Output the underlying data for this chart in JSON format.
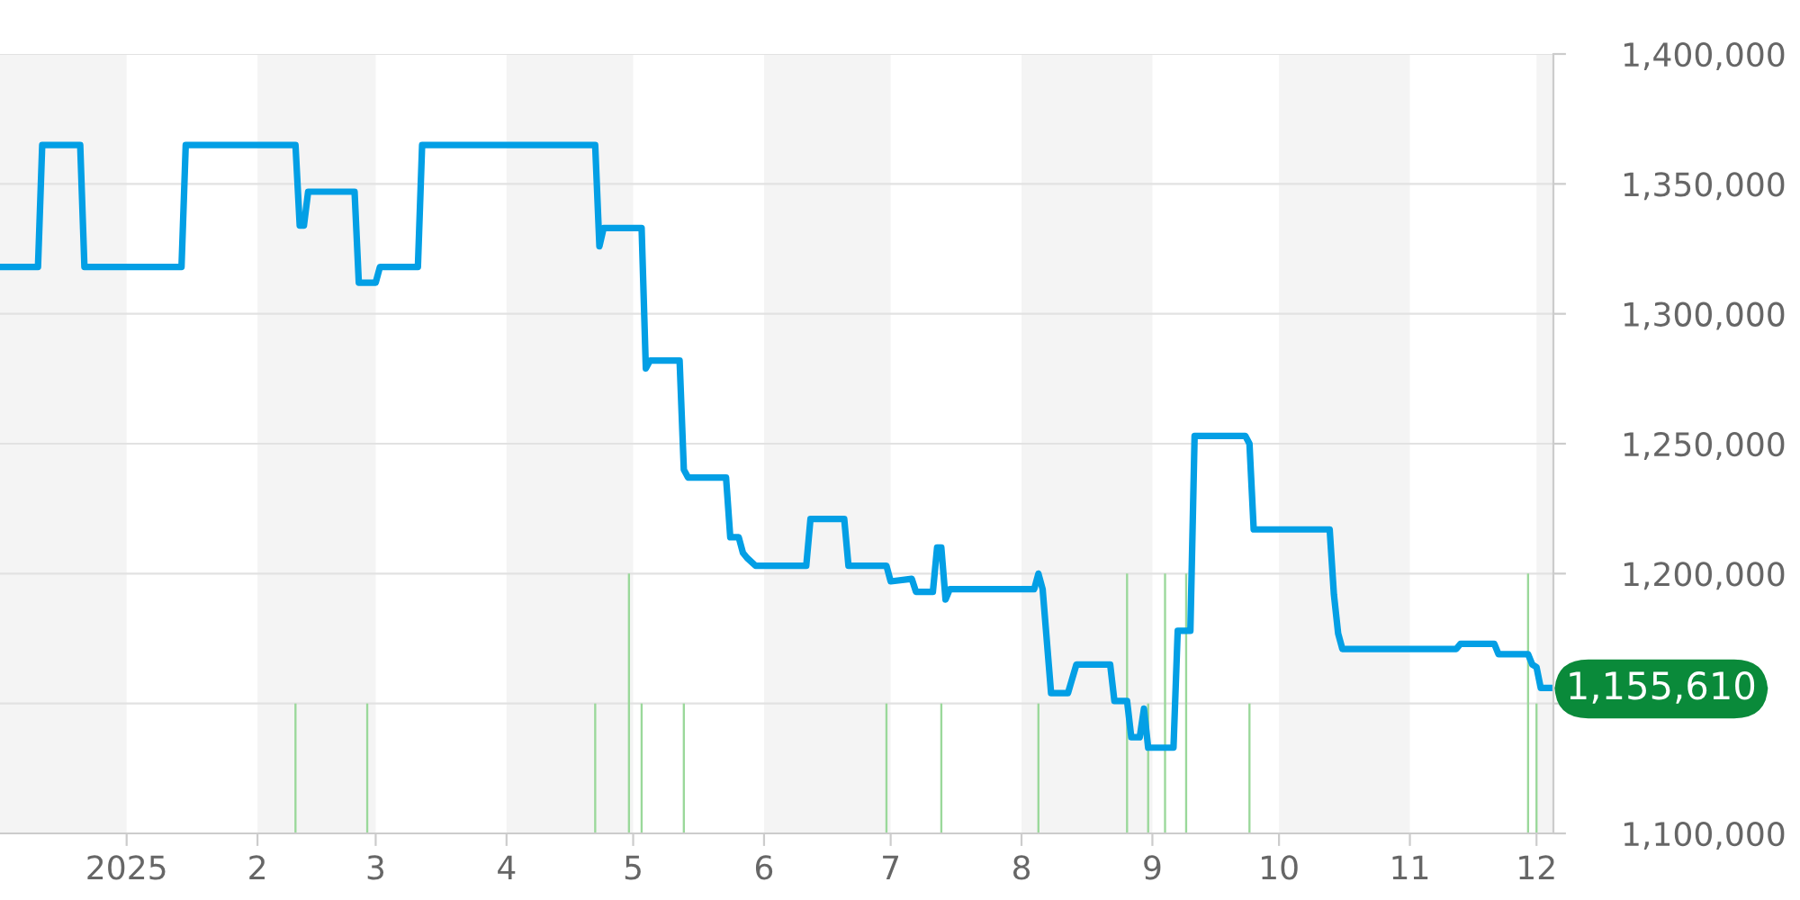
{
  "chart_data": {
    "type": "line",
    "xlim": [
      "2024-12-02",
      "2025-12-05"
    ],
    "xticks": [
      {
        "value": "2025-01-01",
        "label": "2025"
      },
      {
        "value": "2025-02-01",
        "label": "2"
      },
      {
        "value": "2025-03-01",
        "label": "3"
      },
      {
        "value": "2025-04-01",
        "label": "4"
      },
      {
        "value": "2025-05-01",
        "label": "5"
      },
      {
        "value": "2025-06-01",
        "label": "6"
      },
      {
        "value": "2025-07-01",
        "label": "7"
      },
      {
        "value": "2025-08-01",
        "label": "8"
      },
      {
        "value": "2025-09-01",
        "label": "9"
      },
      {
        "value": "2025-10-01",
        "label": "10"
      },
      {
        "value": "2025-11-01",
        "label": "11"
      },
      {
        "value": "2025-12-01",
        "label": "12"
      }
    ],
    "ylim": [
      1100000,
      1400000
    ],
    "yticks": [
      {
        "value": 1100000,
        "label": "1,100,000"
      },
      {
        "value": 1150000,
        "label": null
      },
      {
        "value": 1200000,
        "label": "1,200,000"
      },
      {
        "value": 1250000,
        "label": "1,250,000"
      },
      {
        "value": 1300000,
        "label": "1,300,000"
      },
      {
        "value": 1350000,
        "label": "1,350,000"
      },
      {
        "value": 1400000,
        "label": "1,400,000"
      }
    ],
    "grid": "y",
    "series": [
      {
        "type": "bar",
        "color": "#9ad89a",
        "x": [
          "2025-02-10",
          "2025-02-27",
          "2025-04-22",
          "2025-04-30",
          "2025-05-03",
          "2025-05-13",
          "2025-06-30",
          "2025-07-13",
          "2025-08-05",
          "2025-08-26",
          "2025-08-31",
          "2025-09-04",
          "2025-09-09",
          "2025-09-24",
          "2025-11-29",
          "2025-12-01"
        ],
        "values": [
          1150000,
          1150000,
          1150000,
          1200000,
          1150000,
          1150000,
          1150000,
          1150000,
          1150000,
          1200000,
          1150000,
          1200000,
          1200000,
          1150000,
          1200000,
          1150000
        ]
      },
      {
        "color": "#039fe5",
        "x": [
          "2024-12-02",
          "2024-12-11",
          "2024-12-12",
          "2024-12-21",
          "2024-12-22",
          "2025-01-14",
          "2025-01-15",
          "2025-02-10",
          "2025-02-11",
          "2025-02-12",
          "2025-02-13",
          "2025-02-24",
          "2025-02-25",
          "2025-03-01",
          "2025-03-02",
          "2025-03-11",
          "2025-03-12",
          "2025-04-22",
          "2025-04-23",
          "2025-04-24",
          "2025-05-03",
          "2025-05-04",
          "2025-05-05",
          "2025-05-12",
          "2025-05-13",
          "2025-05-14",
          "2025-05-23",
          "2025-05-24",
          "2025-05-26",
          "2025-05-27",
          "2025-05-28",
          "2025-05-30",
          "2025-06-11",
          "2025-06-12",
          "2025-06-20",
          "2025-06-21",
          "2025-06-30",
          "2025-07-01",
          "2025-07-06",
          "2025-07-07",
          "2025-07-11",
          "2025-07-12",
          "2025-07-13",
          "2025-07-14",
          "2025-07-15",
          "2025-08-04",
          "2025-08-05",
          "2025-08-06",
          "2025-08-08",
          "2025-08-12",
          "2025-08-14",
          "2025-08-22",
          "2025-08-23",
          "2025-08-26",
          "2025-08-27",
          "2025-08-29",
          "2025-08-30",
          "2025-08-31",
          "2025-09-02",
          "2025-09-06",
          "2025-09-07",
          "2025-09-10",
          "2025-09-11",
          "2025-09-23",
          "2025-09-24",
          "2025-09-25",
          "2025-10-13",
          "2025-10-14",
          "2025-10-15",
          "2025-10-16",
          "2025-11-12",
          "2025-11-13",
          "2025-11-21",
          "2025-11-22",
          "2025-11-29",
          "2025-11-30",
          "2025-12-01",
          "2025-12-02",
          "2025-12-04"
        ],
        "values": [
          1318000,
          1318000,
          1365000,
          1365000,
          1318000,
          1318000,
          1365000,
          1365000,
          1334000,
          1334000,
          1347000,
          1347000,
          1312000,
          1312000,
          1318000,
          1318000,
          1365000,
          1365000,
          1326000,
          1333000,
          1333000,
          1279000,
          1282000,
          1282000,
          1240000,
          1237000,
          1237000,
          1214000,
          1214000,
          1208000,
          1206000,
          1203000,
          1203000,
          1221000,
          1221000,
          1203000,
          1203000,
          1197000,
          1198000,
          1193000,
          1193000,
          1210000,
          1210000,
          1190000,
          1194000,
          1194000,
          1200000,
          1194000,
          1154000,
          1154000,
          1165000,
          1165000,
          1151000,
          1151000,
          1137000,
          1137000,
          1148000,
          1133000,
          1133000,
          1133000,
          1178000,
          1178000,
          1253000,
          1253000,
          1250000,
          1217000,
          1217000,
          1192000,
          1177000,
          1171000,
          1171000,
          1173000,
          1173000,
          1169000,
          1169000,
          1165000,
          1164000,
          1156000,
          1156000
        ]
      }
    ],
    "bands": [
      {
        "axis": "x",
        "from": "2024-12-02",
        "to": "2025-01-01",
        "color": "#f4f4f4"
      },
      {
        "axis": "x",
        "from": "2025-02-01",
        "to": "2025-03-01",
        "color": "#f4f4f4"
      },
      {
        "axis": "x",
        "from": "2025-04-01",
        "to": "2025-05-01",
        "color": "#f4f4f4"
      },
      {
        "axis": "x",
        "from": "2025-06-01",
        "to": "2025-07-01",
        "color": "#f4f4f4"
      },
      {
        "axis": "x",
        "from": "2025-08-01",
        "to": "2025-09-01",
        "color": "#f4f4f4"
      },
      {
        "axis": "x",
        "from": "2025-10-01",
        "to": "2025-11-01",
        "color": "#f4f4f4"
      },
      {
        "axis": "x",
        "from": "2025-12-01",
        "to": "2025-12-05",
        "color": "#f4f4f4"
      }
    ],
    "annotations": [
      {
        "text": "1,155,610",
        "x": "2025-12-04",
        "y": 1155610
      }
    ]
  }
}
